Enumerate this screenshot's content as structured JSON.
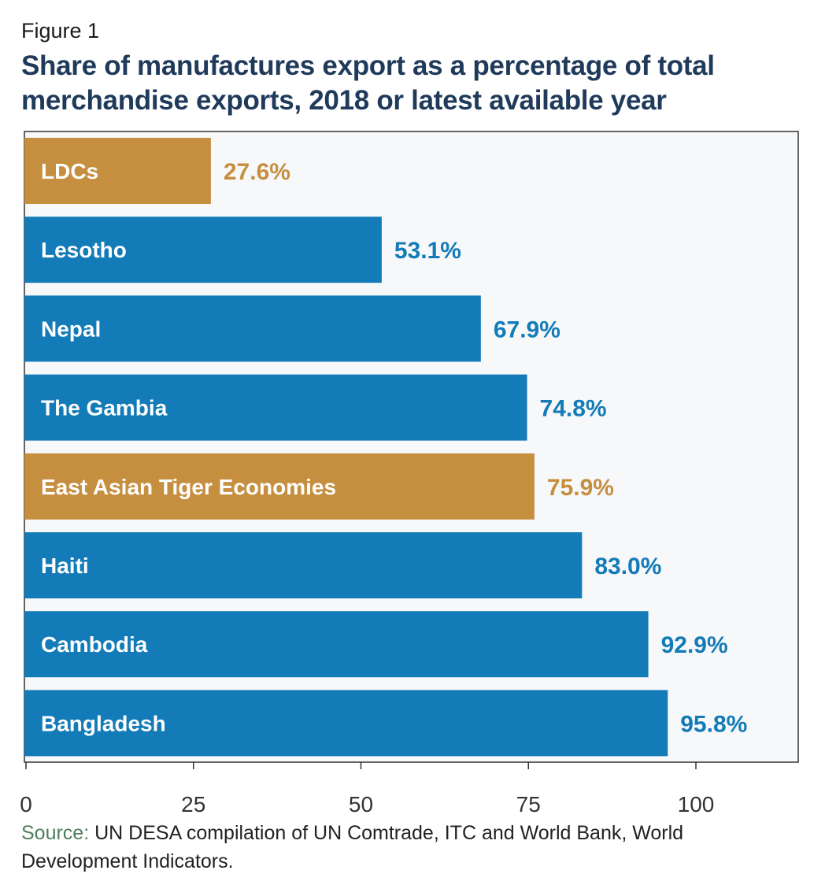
{
  "figure_label": "Figure 1",
  "title": "Share of manufactures export as a percentage of total merchandise exports, 2018 or latest available year",
  "source": {
    "label": "Source:",
    "text": " UN DESA compilation of UN Comtrade, ITC and World Bank, World Development Indicators."
  },
  "colors": {
    "country_bar": "#137bb7",
    "group_bar": "#c68f40",
    "plot_background": "#f7f8fa",
    "bar_label": "#ffffff"
  },
  "chart_data": {
    "type": "bar",
    "orientation": "horizontal",
    "title": "Share of manufactures export as a percentage of total merchandise exports, 2018 or latest available year",
    "xlabel": "",
    "ylabel": "",
    "xlim": [
      0,
      115
    ],
    "xticks": [
      0,
      25,
      50,
      75,
      100
    ],
    "grid": false,
    "categories": [
      "LDCs",
      "Lesotho",
      "Nepal",
      "The Gambia",
      "East Asian Tiger Economies",
      "Haiti",
      "Cambodia",
      "Bangladesh"
    ],
    "values": [
      27.6,
      53.1,
      67.9,
      74.8,
      75.9,
      83.0,
      92.9,
      95.8
    ],
    "value_labels": [
      "27.6%",
      "53.1%",
      "67.9%",
      "74.8%",
      "75.9%",
      "83.0%",
      "92.9%",
      "95.8%"
    ],
    "bar_types": [
      "group",
      "country",
      "country",
      "country",
      "group",
      "country",
      "country",
      "country"
    ]
  }
}
